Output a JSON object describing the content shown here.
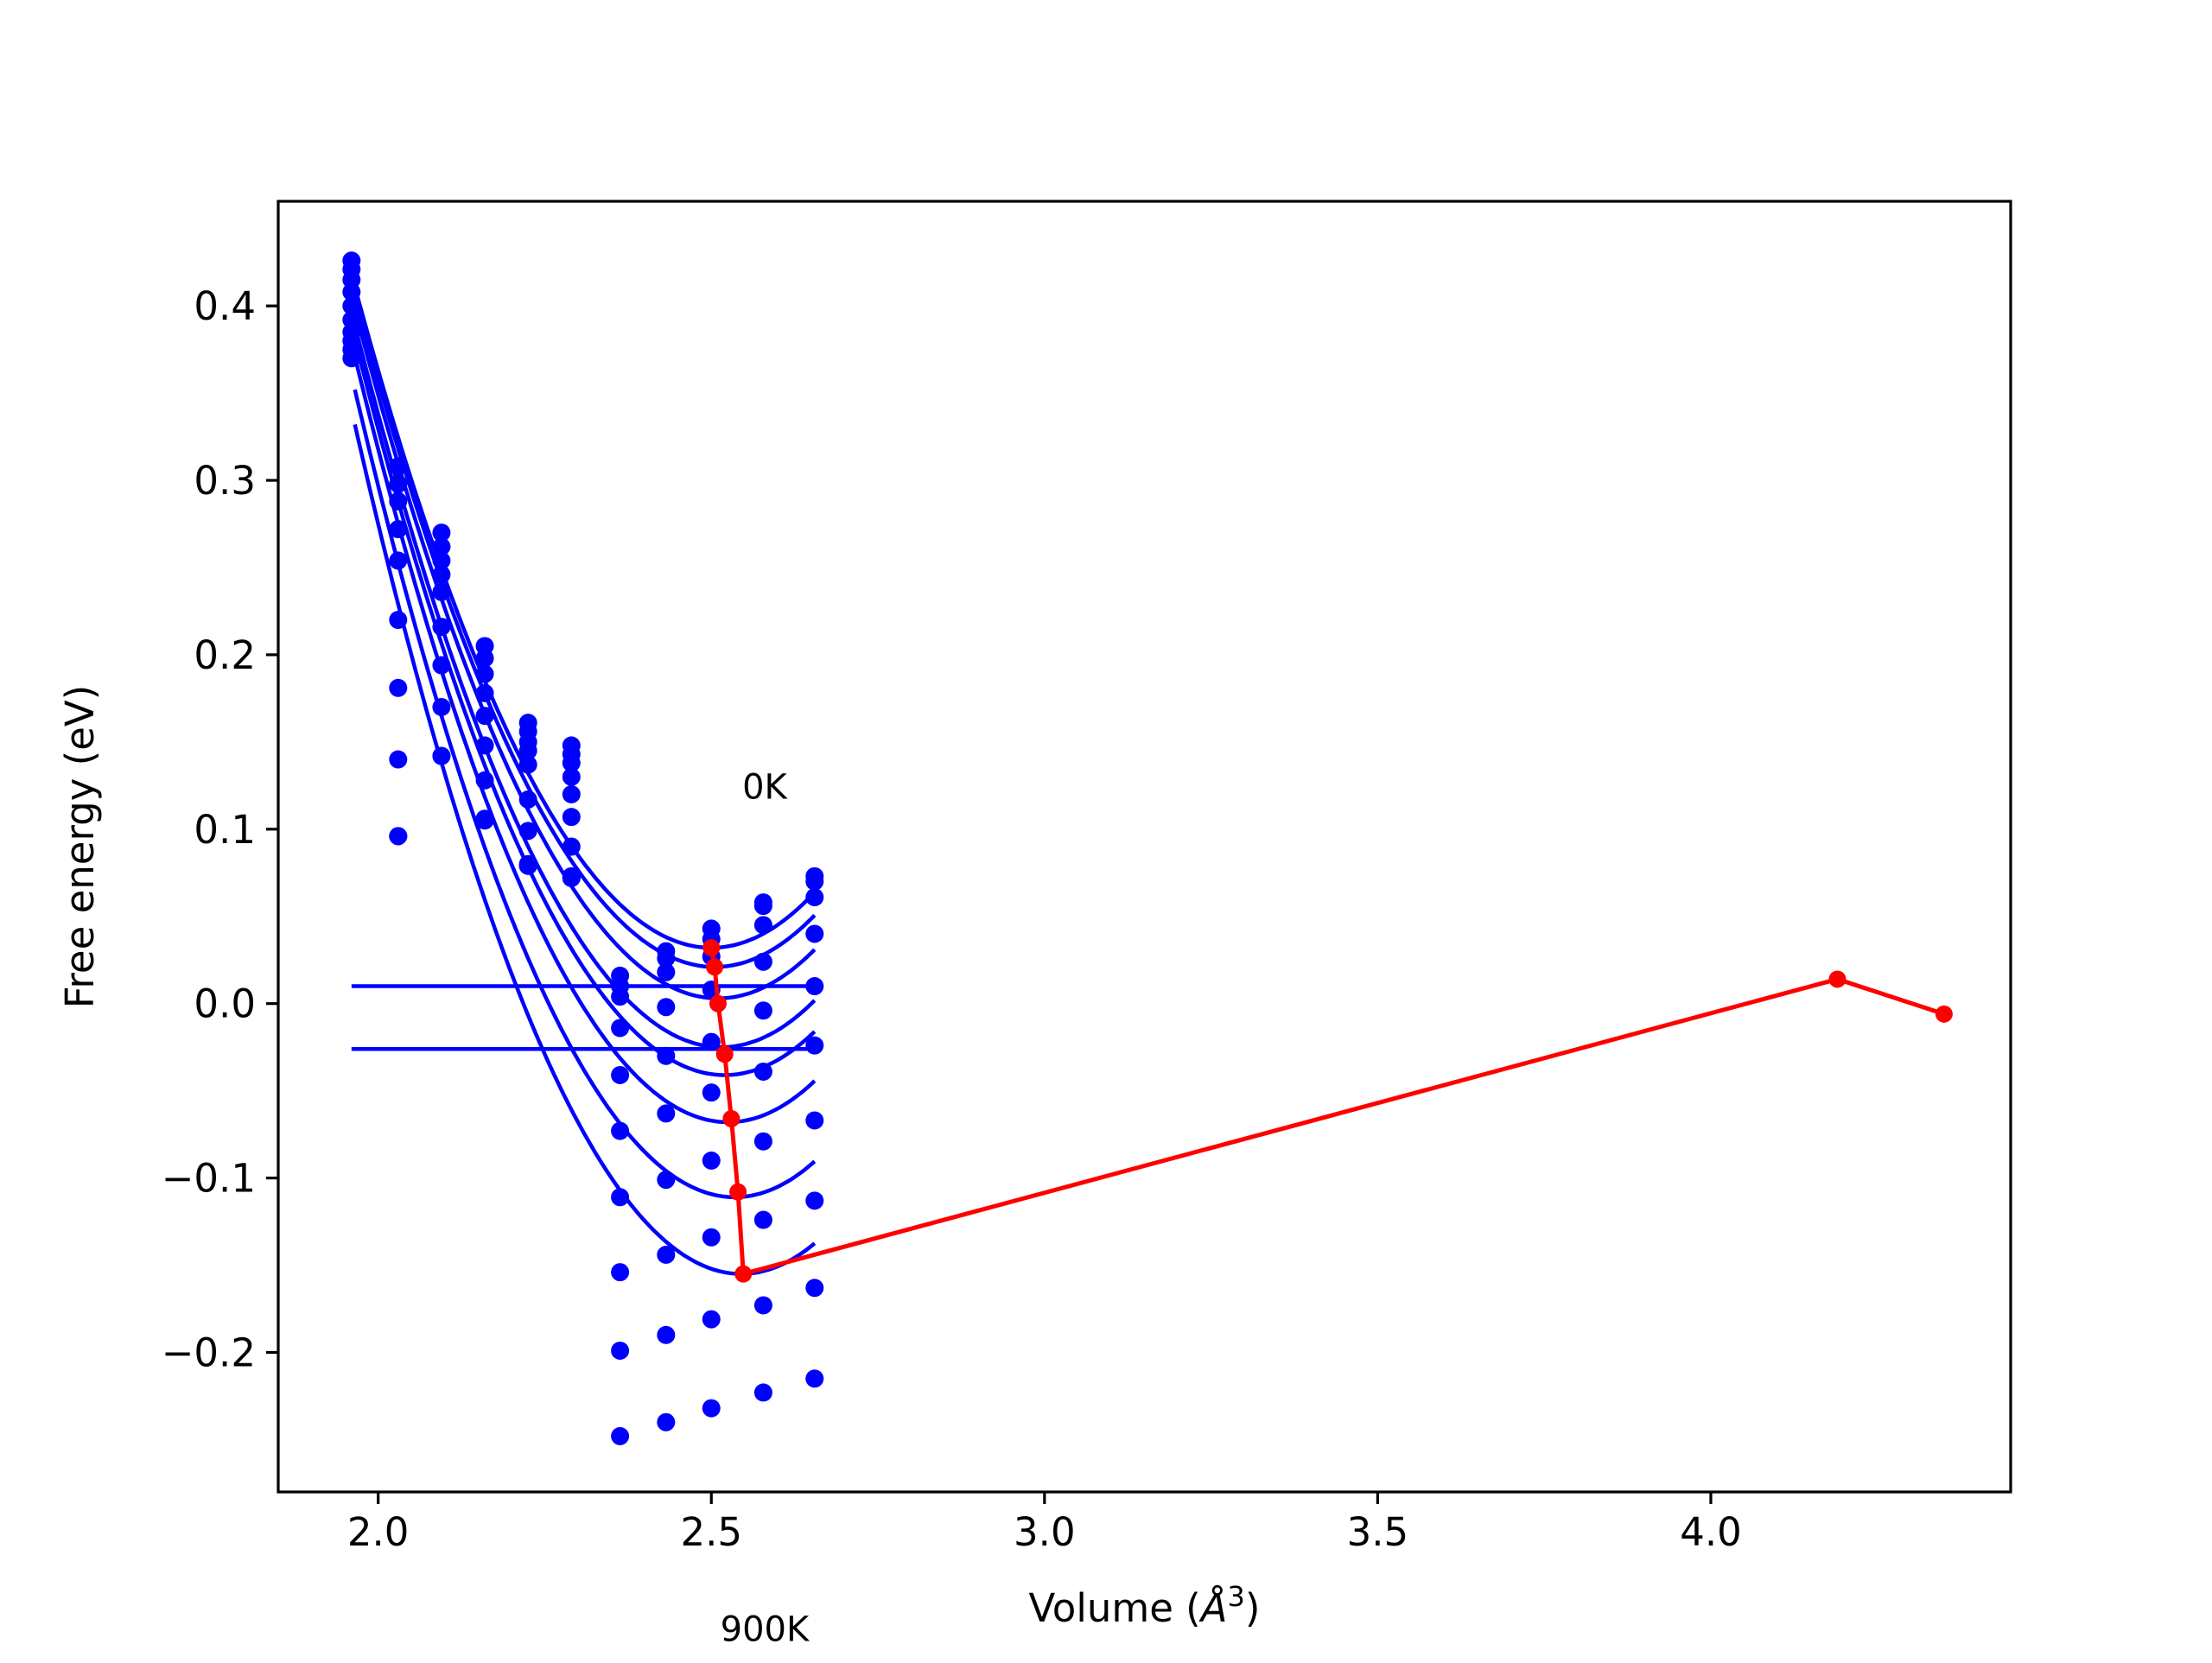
{
  "chart_data": {
    "type": "scatter",
    "title": "",
    "xlabel": "Volume (",
    "xlabel_symbol": "Å",
    "xlabel_exponent": "3",
    "xlabel_close": ")",
    "ylabel": "Free energy (eV)",
    "xlim": [
      1.85,
      4.45
    ],
    "ylim": [
      -0.28,
      0.46
    ],
    "grid": false,
    "legend": "none",
    "x_ticks": [
      {
        "value": 2.0,
        "label": "2.0"
      },
      {
        "value": 2.5,
        "label": "2.5"
      },
      {
        "value": 3.0,
        "label": "3.0"
      },
      {
        "value": 3.5,
        "label": "3.5"
      },
      {
        "value": 4.0,
        "label": "4.0"
      }
    ],
    "y_ticks": [
      {
        "value": -0.2,
        "label": "−0.2"
      },
      {
        "value": -0.1,
        "label": "−0.1"
      },
      {
        "value": 0.0,
        "label": "0.0"
      },
      {
        "value": 0.1,
        "label": "0.1"
      },
      {
        "value": 0.2,
        "label": "0.2"
      },
      {
        "value": 0.3,
        "label": "0.3"
      },
      {
        "value": 0.4,
        "label": "0.4"
      }
    ],
    "annotations": [
      {
        "text": "0K",
        "x": 2.58,
        "y": 0.125
      },
      {
        "text": "900K",
        "x": 2.58,
        "y": -0.358
      }
    ],
    "colors": {
      "fit": "#0000ff",
      "minima": "#ff0000",
      "axis": "#000000"
    },
    "data_points": {
      "color": "#0000ff",
      "x": [
        1.96,
        2.03,
        2.095,
        2.16,
        2.225,
        2.29,
        2.363,
        2.432,
        2.5,
        2.578,
        2.655
      ],
      "curves_y": [
        [
          0.426,
          0.308,
          0.27,
          0.205,
          0.161,
          0.148,
          0.016,
          0.03,
          0.043,
          0.058,
          0.073
        ],
        [
          0.421,
          0.298,
          0.262,
          0.198,
          0.156,
          0.143,
          0.01,
          0.026,
          0.037,
          0.056,
          0.07
        ],
        [
          0.415,
          0.288,
          0.254,
          0.189,
          0.15,
          0.138,
          0.004,
          0.018,
          0.027,
          0.045,
          0.061
        ],
        [
          0.408,
          0.272,
          0.246,
          0.178,
          0.145,
          0.13,
          -0.014,
          -0.002,
          0.008,
          0.024,
          0.04
        ],
        [
          0.4,
          0.254,
          0.236,
          0.165,
          0.137,
          0.12,
          -0.041,
          -0.03,
          -0.022,
          -0.004,
          0.01
        ],
        [
          0.392,
          0.22,
          0.216,
          0.148,
          0.117,
          0.107,
          -0.073,
          -0.063,
          -0.051,
          -0.039,
          -0.024
        ],
        [
          0.385,
          0.181,
          0.194,
          0.128,
          0.099,
          0.09,
          -0.111,
          -0.101,
          -0.09,
          -0.079,
          -0.067
        ],
        [
          0.38,
          0.14,
          0.17,
          0.106,
          0.08,
          0.073,
          -0.154,
          -0.144,
          -0.134,
          -0.124,
          -0.113
        ],
        [
          0.375,
          0.096,
          0.142,
          0.105,
          0.079,
          0.072,
          -0.199,
          -0.19,
          -0.181,
          -0.173,
          -0.163
        ],
        [
          0.37,
          0.096,
          0.142,
          0.105,
          0.079,
          0.072,
          -0.248,
          -0.24,
          -0.232,
          -0.223,
          -0.215
        ]
      ]
    },
    "fit_curves": {
      "color": "#0000ff",
      "x_range": [
        1.965,
        2.655
      ],
      "series": [
        {
          "vmin": 2.5,
          "emin": 0.032,
          "y_at_start": 0.411
        },
        {
          "vmin": 2.505,
          "emin": 0.021,
          "y_at_start": 0.405
        },
        {
          "vmin": 2.51,
          "emin": 0.003,
          "y_at_start": 0.398
        },
        {
          "vmin": 2.515,
          "emin": -0.025,
          "y_at_start": 0.389
        },
        {
          "vmin": 2.52,
          "emin": -0.041,
          "y_at_start": 0.381
        },
        {
          "vmin": 2.525,
          "emin": -0.068,
          "y_at_start": 0.371
        },
        {
          "vmin": 2.535,
          "emin": -0.111,
          "y_at_start": 0.352
        },
        {
          "vmin": 2.545,
          "emin": -0.155,
          "y_at_start": 0.332
        }
      ]
    },
    "horizontal_lines": {
      "color": "#0000ff",
      "x_range": [
        1.96,
        2.66
      ],
      "y": [
        0.01,
        -0.026
      ]
    },
    "minima_path": {
      "color": "#ff0000",
      "x": [
        2.5,
        2.505,
        2.51,
        2.52,
        2.53,
        2.54,
        2.548,
        4.19,
        4.35
      ],
      "y": [
        0.032,
        0.021,
        0.0,
        -0.029,
        -0.066,
        -0.108,
        -0.155,
        0.014,
        -0.006
      ]
    }
  }
}
